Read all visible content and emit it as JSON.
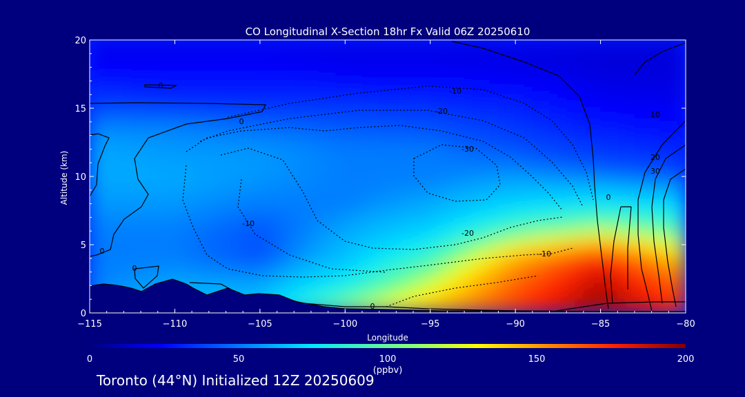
{
  "chart_data": {
    "type": "heatmap",
    "title": "CO Longitudinal X-Section 18hr  Fx Valid 06Z 20250610",
    "xlabel": "Longitude",
    "ylabel": "Altitude (km)",
    "xlim": [
      -115,
      -80
    ],
    "ylim": [
      0,
      20
    ],
    "x_ticks": [
      "-115",
      "-110",
      "-105",
      "-100",
      "-95",
      "-90",
      "-85",
      "-80"
    ],
    "y_ticks": [
      "0",
      "5",
      "10",
      "15",
      "20"
    ],
    "colorbar": {
      "label": "(ppbv)",
      "range": [
        0,
        200
      ],
      "ticks": [
        "0",
        "50",
        "100",
        "150",
        "200"
      ]
    },
    "contour_labels": [
      "0",
      "0",
      "0",
      "0",
      "0",
      "-10",
      "-20",
      "-30",
      "-20",
      "-10",
      "-10",
      "10",
      "20",
      "30",
      "0"
    ],
    "co_field": {
      "x": [
        -115,
        -110,
        -105,
        -100,
        -95,
        -90,
        -85,
        -80
      ],
      "y": [
        0,
        2,
        4,
        6,
        8,
        10,
        12,
        14,
        16,
        18,
        20
      ],
      "values": [
        [
          60,
          65,
          70,
          110,
          140,
          170,
          195,
          170
        ],
        [
          55,
          60,
          60,
          80,
          115,
          160,
          190,
          160
        ],
        [
          55,
          55,
          50,
          65,
          90,
          140,
          175,
          130
        ],
        [
          55,
          55,
          50,
          60,
          70,
          95,
          110,
          95
        ],
        [
          58,
          58,
          55,
          55,
          60,
          70,
          75,
          70
        ],
        [
          60,
          60,
          58,
          55,
          55,
          58,
          55,
          50
        ],
        [
          60,
          58,
          58,
          55,
          55,
          50,
          42,
          35
        ],
        [
          55,
          55,
          52,
          50,
          48,
          40,
          30,
          25
        ],
        [
          40,
          35,
          35,
          35,
          33,
          30,
          22,
          20
        ],
        [
          25,
          25,
          25,
          22,
          22,
          20,
          18,
          18
        ],
        [
          20,
          20,
          20,
          20,
          20,
          20,
          18,
          18
        ]
      ]
    }
  },
  "footer": "Toronto (44°N) Initialized 12Z 20250609",
  "colors": {
    "background": "#00007f",
    "terrain": "#00007f",
    "contour": "#000000"
  }
}
